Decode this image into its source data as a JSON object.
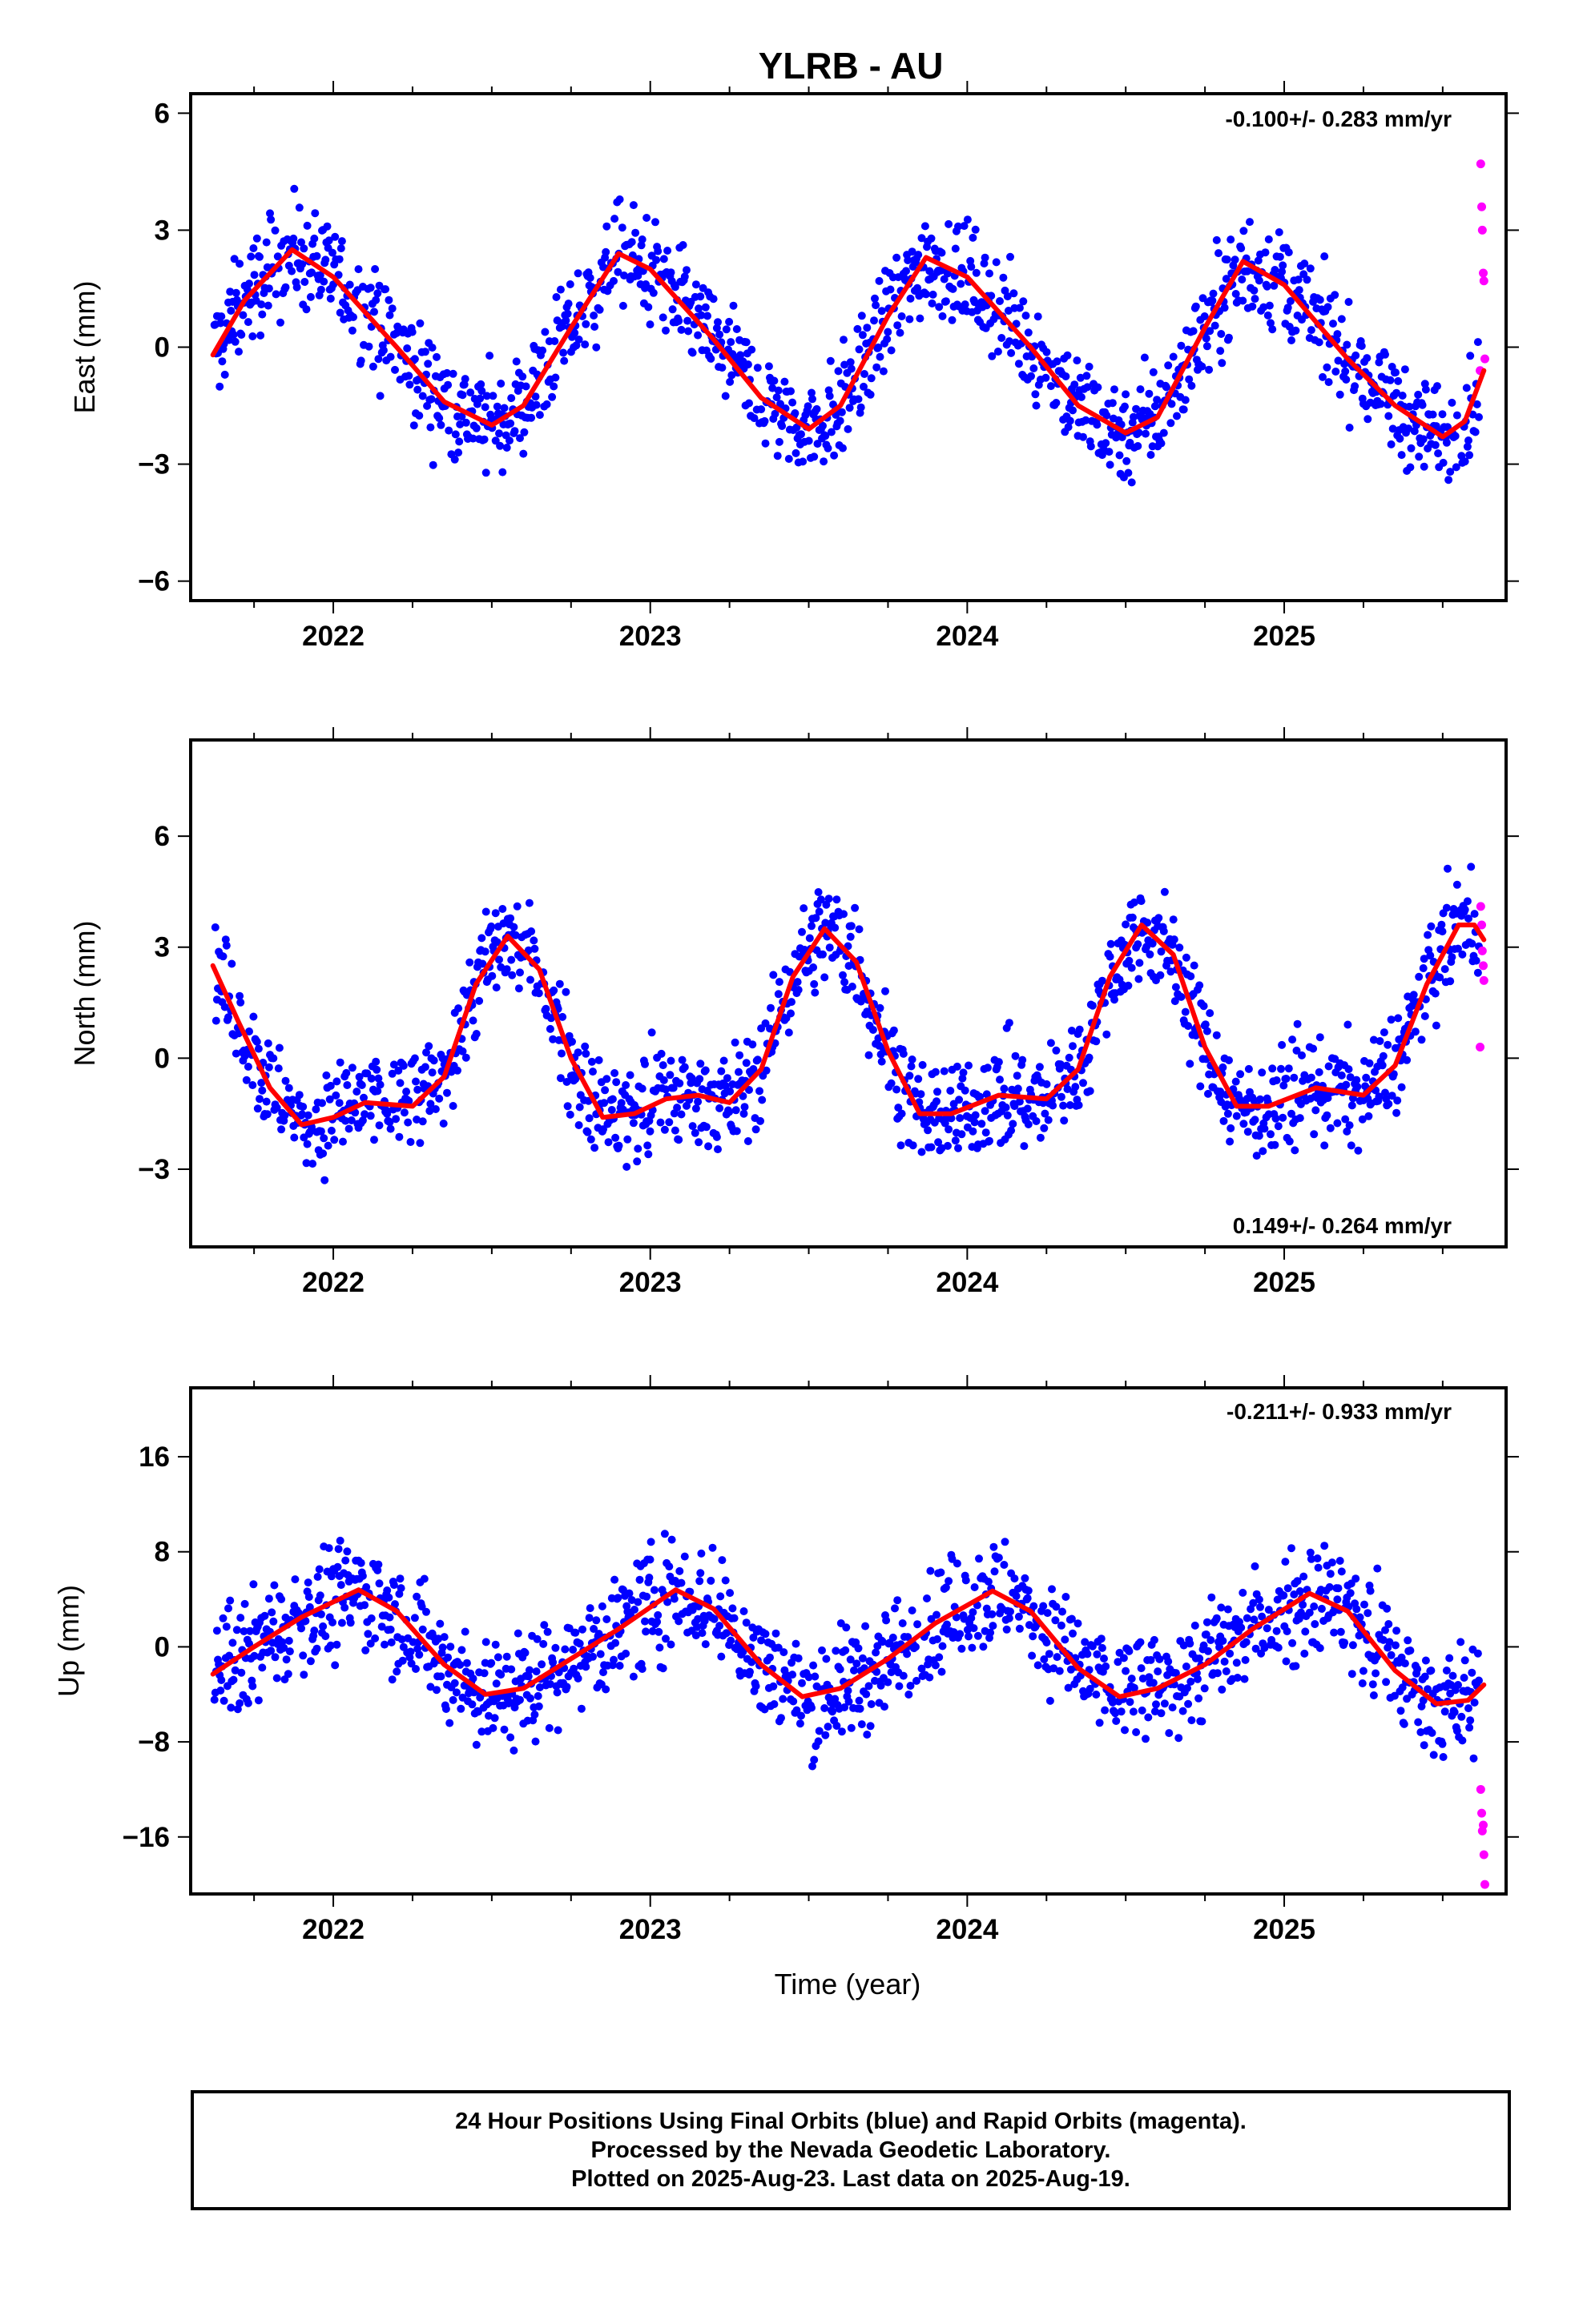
{
  "title": "YLRB - AU",
  "xlabel": "Time (year)",
  "colors": {
    "final": "#0000ff",
    "rapid": "#ff00ff",
    "model": "#ff0000",
    "frame": "#000000"
  },
  "footer": {
    "line1": "24 Hour Positions Using Final Orbits (blue) and Rapid Orbits (magenta).",
    "line2": "Processed by the Nevada Geodetic Laboratory.",
    "line3": "Plotted on 2025-Aug-23. Last data on 2025-Aug-19."
  },
  "chart_data": [
    {
      "type": "scatter",
      "ylabel": "East (mm)",
      "rate_label": "-0.100+/- 0.283 mm/yr",
      "xlim": [
        2021.55,
        2025.7
      ],
      "ylim": [
        -6.5,
        6.5
      ],
      "x_ticks": [
        2022,
        2023,
        2024,
        2025
      ],
      "y_ticks": [
        -6,
        -3,
        0,
        3,
        6
      ],
      "y_tick_labels": [
        "−6",
        "−3",
        "0",
        "3",
        "6"
      ],
      "model": {
        "name": "fit",
        "points": [
          [
            2021.62,
            -0.2
          ],
          [
            2021.72,
            1.2
          ],
          [
            2021.87,
            2.5
          ],
          [
            2022.0,
            1.8
          ],
          [
            2022.2,
            0.0
          ],
          [
            2022.35,
            -1.4
          ],
          [
            2022.5,
            -2.0
          ],
          [
            2022.6,
            -1.5
          ],
          [
            2022.75,
            0.5
          ],
          [
            2022.9,
            2.4
          ],
          [
            2023.0,
            2.0
          ],
          [
            2023.2,
            0.2
          ],
          [
            2023.35,
            -1.3
          ],
          [
            2023.5,
            -2.1
          ],
          [
            2023.6,
            -1.5
          ],
          [
            2023.75,
            0.8
          ],
          [
            2023.87,
            2.3
          ],
          [
            2024.0,
            1.8
          ],
          [
            2024.2,
            0.0
          ],
          [
            2024.35,
            -1.5
          ],
          [
            2024.5,
            -2.2
          ],
          [
            2024.6,
            -1.8
          ],
          [
            2024.75,
            0.5
          ],
          [
            2024.87,
            2.2
          ],
          [
            2025.0,
            1.6
          ],
          [
            2025.2,
            -0.3
          ],
          [
            2025.35,
            -1.5
          ],
          [
            2025.5,
            -2.3
          ],
          [
            2025.57,
            -1.9
          ],
          [
            2025.63,
            -0.6
          ]
        ]
      },
      "rapid_points": [
        [
          2025.62,
          4.7
        ],
        [
          2025.623,
          3.6
        ],
        [
          2025.625,
          3.0
        ],
        [
          2025.628,
          1.9
        ],
        [
          2025.63,
          1.7
        ],
        [
          2025.633,
          -0.3
        ],
        [
          2025.618,
          -0.6
        ]
      ]
    },
    {
      "type": "scatter",
      "ylabel": "North (mm)",
      "rate_label": "0.149+/- 0.264 mm/yr",
      "xlim": [
        2021.55,
        2025.7
      ],
      "ylim": [
        -5.1,
        8.6
      ],
      "x_ticks": [
        2022,
        2023,
        2024,
        2025
      ],
      "y_ticks": [
        -3,
        0,
        3,
        6
      ],
      "y_tick_labels": [
        "−3",
        "0",
        "3",
        "6"
      ],
      "model": {
        "name": "fit",
        "points": [
          [
            2021.62,
            2.5
          ],
          [
            2021.7,
            1.0
          ],
          [
            2021.8,
            -0.8
          ],
          [
            2021.9,
            -1.8
          ],
          [
            2022.0,
            -1.6
          ],
          [
            2022.1,
            -1.2
          ],
          [
            2022.25,
            -1.3
          ],
          [
            2022.35,
            -0.5
          ],
          [
            2022.45,
            2.0
          ],
          [
            2022.55,
            3.3
          ],
          [
            2022.65,
            2.4
          ],
          [
            2022.75,
            0.0
          ],
          [
            2022.85,
            -1.6
          ],
          [
            2022.95,
            -1.5
          ],
          [
            2023.05,
            -1.1
          ],
          [
            2023.15,
            -1.0
          ],
          [
            2023.25,
            -1.2
          ],
          [
            2023.35,
            -0.3
          ],
          [
            2023.45,
            2.2
          ],
          [
            2023.55,
            3.5
          ],
          [
            2023.65,
            2.6
          ],
          [
            2023.75,
            0.2
          ],
          [
            2023.85,
            -1.5
          ],
          [
            2023.95,
            -1.5
          ],
          [
            2024.1,
            -1.0
          ],
          [
            2024.25,
            -1.1
          ],
          [
            2024.35,
            -0.3
          ],
          [
            2024.45,
            2.2
          ],
          [
            2024.55,
            3.6
          ],
          [
            2024.65,
            2.8
          ],
          [
            2024.75,
            0.3
          ],
          [
            2024.85,
            -1.3
          ],
          [
            2024.95,
            -1.3
          ],
          [
            2025.1,
            -0.8
          ],
          [
            2025.25,
            -1.0
          ],
          [
            2025.35,
            -0.2
          ],
          [
            2025.45,
            2.0
          ],
          [
            2025.55,
            3.6
          ],
          [
            2025.6,
            3.6
          ],
          [
            2025.63,
            3.2
          ]
        ]
      },
      "rapid_points": [
        [
          2025.62,
          4.1
        ],
        [
          2025.623,
          3.6
        ],
        [
          2025.625,
          2.9
        ],
        [
          2025.628,
          2.5
        ],
        [
          2025.63,
          2.1
        ],
        [
          2025.618,
          0.3
        ]
      ]
    },
    {
      "type": "scatter",
      "ylabel": "Up (mm)",
      "rate_label": "-0.211+/- 0.933 mm/yr",
      "xlim": [
        2021.55,
        2025.7
      ],
      "ylim": [
        -20.8,
        21.8
      ],
      "x_ticks": [
        2022,
        2023,
        2024,
        2025
      ],
      "y_ticks": [
        -16,
        -8,
        0,
        8,
        16
      ],
      "y_tick_labels": [
        "−16",
        "−8",
        "0",
        "8",
        "16"
      ],
      "model": {
        "name": "fit",
        "points": [
          [
            2021.62,
            -2.3
          ],
          [
            2021.75,
            0.0
          ],
          [
            2021.9,
            2.5
          ],
          [
            2022.08,
            4.8
          ],
          [
            2022.2,
            3.0
          ],
          [
            2022.35,
            -1.5
          ],
          [
            2022.48,
            -4.0
          ],
          [
            2022.6,
            -3.5
          ],
          [
            2022.75,
            -1.0
          ],
          [
            2022.9,
            1.5
          ],
          [
            2023.08,
            4.8
          ],
          [
            2023.2,
            3.2
          ],
          [
            2023.35,
            -1.5
          ],
          [
            2023.48,
            -4.2
          ],
          [
            2023.6,
            -3.5
          ],
          [
            2023.75,
            -1.0
          ],
          [
            2023.9,
            2.0
          ],
          [
            2024.08,
            4.7
          ],
          [
            2024.2,
            3.0
          ],
          [
            2024.35,
            -1.8
          ],
          [
            2024.48,
            -4.2
          ],
          [
            2024.6,
            -3.5
          ],
          [
            2024.75,
            -1.5
          ],
          [
            2024.9,
            1.5
          ],
          [
            2025.08,
            4.5
          ],
          [
            2025.2,
            3.0
          ],
          [
            2025.35,
            -2.0
          ],
          [
            2025.48,
            -4.8
          ],
          [
            2025.58,
            -4.5
          ],
          [
            2025.63,
            -3.2
          ]
        ]
      },
      "rapid_points": [
        [
          2025.62,
          -12.0
        ],
        [
          2025.623,
          -14.0
        ],
        [
          2025.625,
          -15.5
        ],
        [
          2025.628,
          -15.0
        ],
        [
          2025.63,
          -17.5
        ],
        [
          2025.633,
          -20.0
        ]
      ]
    }
  ]
}
